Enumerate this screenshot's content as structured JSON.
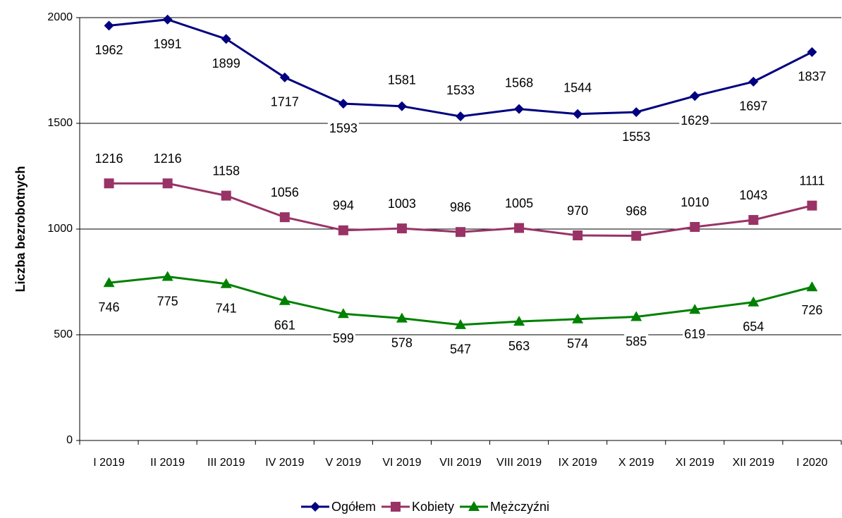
{
  "chart_data": {
    "type": "line",
    "y_label": "Liczba bezrobotnych",
    "categories": [
      "I 2019",
      "II 2019",
      "III 2019",
      "IV 2019",
      "V 2019",
      "VI 2019",
      "VII 2019",
      "VIII 2019",
      "IX 2019",
      "X 2019",
      "XI 2019",
      "XII 2019",
      "I 2020"
    ],
    "series": [
      {
        "name": "Ogółem",
        "color": "#000080",
        "marker": "diamond",
        "values": [
          1962,
          1991,
          1899,
          1717,
          1593,
          1581,
          1533,
          1568,
          1544,
          1553,
          1629,
          1697,
          1837
        ]
      },
      {
        "name": "Kobiety",
        "color": "#993366",
        "marker": "square",
        "values": [
          1216,
          1216,
          1158,
          1056,
          994,
          1003,
          986,
          1005,
          970,
          968,
          1010,
          1043,
          1111
        ]
      },
      {
        "name": "Mężczyźni",
        "color": "#008000",
        "marker": "triangle",
        "values": [
          746,
          775,
          741,
          661,
          599,
          578,
          547,
          563,
          574,
          585,
          619,
          654,
          726
        ]
      }
    ],
    "ylim": [
      0,
      2000
    ],
    "yticks": [
      0,
      500,
      1000,
      1500,
      2000
    ],
    "grid": true,
    "legend": "bottom"
  }
}
